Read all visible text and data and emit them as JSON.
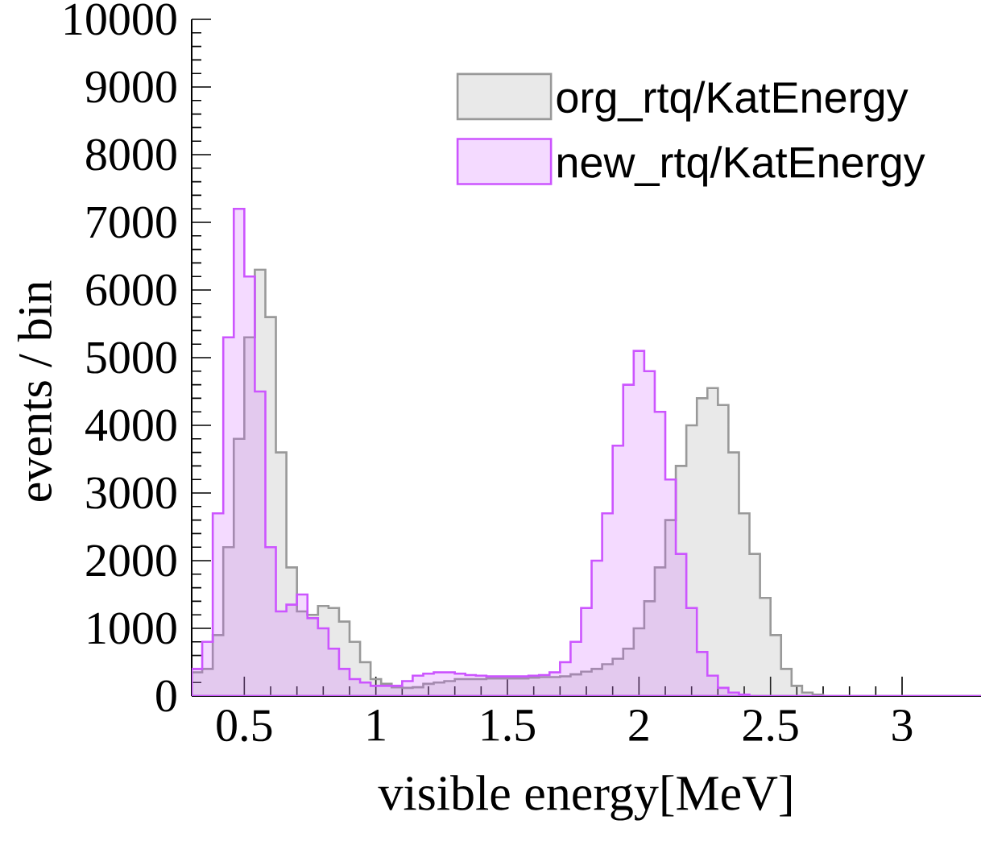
{
  "chart_data": {
    "type": "histogram",
    "xlabel": "visible energy[MeV]",
    "ylabel": "events / bin",
    "bins": [
      0.3,
      0.34,
      0.38,
      0.42,
      0.46,
      0.5,
      0.54,
      0.58,
      0.62,
      0.66,
      0.7,
      0.74,
      0.78,
      0.82,
      0.86,
      0.9,
      0.94,
      0.98,
      1.02,
      1.06,
      1.1,
      1.14,
      1.18,
      1.22,
      1.26,
      1.3,
      1.34,
      1.38,
      1.42,
      1.46,
      1.5,
      1.54,
      1.58,
      1.62,
      1.66,
      1.7,
      1.74,
      1.78,
      1.82,
      1.86,
      1.9,
      1.94,
      1.98,
      2.02,
      2.06,
      2.1,
      2.14,
      2.18,
      2.22,
      2.26,
      2.3,
      2.34,
      2.38,
      2.42,
      2.46,
      2.5,
      2.54,
      2.58,
      2.62,
      2.66,
      2.7,
      2.74,
      2.78,
      2.82,
      2.86,
      2.9,
      2.94,
      2.98,
      3.02,
      3.06,
      3.1,
      3.14,
      3.18,
      3.22,
      3.26,
      3.3
    ],
    "series": [
      {
        "name": "org_rtq/KatEnergy",
        "color": "#999999",
        "values": [
          350,
          400,
          900,
          2200,
          3800,
          5300,
          6300,
          5600,
          3600,
          1900,
          1250,
          1200,
          1330,
          1300,
          1100,
          800,
          500,
          250,
          180,
          130,
          120,
          130,
          180,
          200,
          220,
          250,
          250,
          250,
          260,
          260,
          260,
          260,
          270,
          280,
          280,
          290,
          320,
          360,
          400,
          470,
          550,
          700,
          1000,
          1400,
          1900,
          2600,
          3400,
          4000,
          4400,
          4550,
          4300,
          3600,
          2700,
          2100,
          1450,
          900,
          400,
          150,
          50,
          20,
          0,
          0,
          0,
          0,
          0,
          0,
          0,
          0,
          0,
          0,
          0,
          0,
          0,
          0,
          0
        ]
      },
      {
        "name": "new_rtq/KatEnergy",
        "color": "#cc55ff",
        "values": [
          400,
          800,
          2700,
          5300,
          7200,
          6200,
          4500,
          2200,
          1250,
          1350,
          1500,
          1150,
          1000,
          700,
          400,
          250,
          200,
          150,
          150,
          150,
          220,
          300,
          330,
          350,
          350,
          330,
          310,
          300,
          290,
          290,
          290,
          290,
          300,
          310,
          350,
          500,
          800,
          1300,
          2000,
          2700,
          3700,
          4600,
          5100,
          4800,
          4200,
          3200,
          2100,
          1300,
          650,
          300,
          120,
          50,
          20,
          0,
          0,
          0,
          0,
          0,
          0,
          0,
          0,
          0,
          0,
          0,
          0,
          0,
          0,
          0,
          0,
          0,
          0,
          0,
          0,
          0,
          0
        ]
      }
    ],
    "xlim": [
      0.3,
      3.3
    ],
    "ylim": [
      0,
      10000
    ],
    "xticks": [
      0.5,
      1,
      1.5,
      2,
      2.5,
      3
    ],
    "yticks": [
      0,
      1000,
      2000,
      3000,
      4000,
      5000,
      6000,
      7000,
      8000,
      9000,
      10000
    ],
    "legend": "top right"
  }
}
